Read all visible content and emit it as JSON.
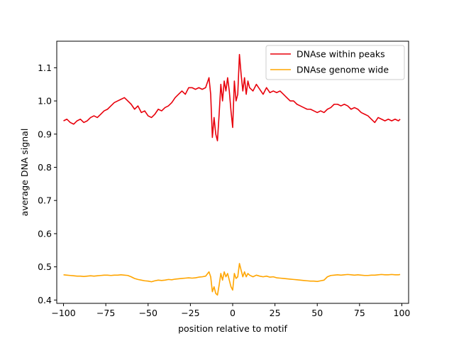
{
  "chart_data": {
    "type": "line",
    "title": "",
    "xlabel": "position relative to motif",
    "ylabel": "average DNA signal",
    "xlim": [
      -104,
      104
    ],
    "ylim": [
      0.39,
      1.18
    ],
    "xticks": [
      -100,
      -75,
      -50,
      -25,
      0,
      25,
      50,
      75,
      100
    ],
    "xtick_labels": [
      "−100",
      "−75",
      "−50",
      "−25",
      "0",
      "25",
      "50",
      "75",
      "100"
    ],
    "yticks": [
      0.4,
      0.5,
      0.6,
      0.7,
      0.8,
      0.9,
      1.0,
      1.1
    ],
    "ytick_labels": [
      "0.4",
      "0.5",
      "0.6",
      "0.7",
      "0.8",
      "0.9",
      "1.0",
      "1.1"
    ],
    "grid": false,
    "legend_position": "upper right",
    "x": [
      -100,
      -98,
      -96,
      -94,
      -92,
      -90,
      -88,
      -86,
      -84,
      -82,
      -80,
      -78,
      -76,
      -74,
      -72,
      -70,
      -68,
      -66,
      -64,
      -62,
      -60,
      -58,
      -56,
      -54,
      -52,
      -50,
      -48,
      -46,
      -44,
      -42,
      -40,
      -38,
      -36,
      -34,
      -32,
      -30,
      -28,
      -26,
      -24,
      -22,
      -20,
      -18,
      -16,
      -14,
      -13,
      -12,
      -11,
      -10,
      -9,
      -8,
      -7,
      -6,
      -5,
      -4,
      -3,
      -2,
      -1,
      0,
      1,
      2,
      3,
      4,
      5,
      6,
      7,
      8,
      9,
      10,
      12,
      14,
      16,
      18,
      20,
      22,
      24,
      26,
      28,
      30,
      32,
      34,
      36,
      38,
      40,
      42,
      44,
      46,
      48,
      50,
      52,
      54,
      56,
      58,
      60,
      62,
      64,
      66,
      68,
      70,
      72,
      74,
      76,
      78,
      80,
      82,
      84,
      86,
      88,
      90,
      92,
      94,
      96,
      98,
      99
    ],
    "series": [
      {
        "name": "DNAse within peaks",
        "color": "#e8000b",
        "values": [
          0.94,
          0.945,
          0.935,
          0.93,
          0.94,
          0.945,
          0.935,
          0.94,
          0.95,
          0.955,
          0.95,
          0.96,
          0.97,
          0.975,
          0.985,
          0.995,
          1.0,
          1.005,
          1.01,
          1.0,
          0.99,
          0.975,
          0.985,
          0.965,
          0.97,
          0.955,
          0.95,
          0.96,
          0.975,
          0.97,
          0.98,
          0.985,
          0.995,
          1.01,
          1.02,
          1.03,
          1.02,
          1.04,
          1.04,
          1.035,
          1.04,
          1.035,
          1.04,
          1.07,
          1.02,
          0.89,
          0.95,
          0.9,
          0.88,
          0.96,
          1.05,
          1.0,
          1.06,
          1.03,
          1.07,
          1.03,
          0.97,
          0.92,
          1.06,
          1.0,
          1.02,
          1.14,
          1.08,
          1.03,
          1.07,
          1.02,
          1.06,
          1.04,
          1.03,
          1.05,
          1.035,
          1.02,
          1.04,
          1.025,
          1.03,
          1.025,
          1.03,
          1.02,
          1.01,
          1.0,
          1.0,
          0.99,
          0.985,
          0.98,
          0.975,
          0.975,
          0.97,
          0.965,
          0.97,
          0.965,
          0.975,
          0.98,
          0.99,
          0.99,
          0.985,
          0.99,
          0.985,
          0.975,
          0.98,
          0.975,
          0.965,
          0.96,
          0.955,
          0.945,
          0.935,
          0.95,
          0.945,
          0.94,
          0.945,
          0.94,
          0.945,
          0.94,
          0.945
        ]
      },
      {
        "name": "DNAse genome wide",
        "color": "#ffa500",
        "values": [
          0.476,
          0.475,
          0.474,
          0.473,
          0.472,
          0.472,
          0.471,
          0.472,
          0.473,
          0.472,
          0.473,
          0.474,
          0.475,
          0.475,
          0.474,
          0.475,
          0.475,
          0.476,
          0.475,
          0.474,
          0.47,
          0.465,
          0.462,
          0.46,
          0.458,
          0.457,
          0.455,
          0.458,
          0.46,
          0.459,
          0.46,
          0.462,
          0.461,
          0.463,
          0.464,
          0.465,
          0.466,
          0.467,
          0.466,
          0.467,
          0.469,
          0.47,
          0.472,
          0.485,
          0.47,
          0.425,
          0.44,
          0.42,
          0.415,
          0.445,
          0.48,
          0.46,
          0.485,
          0.47,
          0.48,
          0.46,
          0.44,
          0.43,
          0.48,
          0.465,
          0.47,
          0.51,
          0.49,
          0.47,
          0.485,
          0.47,
          0.48,
          0.475,
          0.47,
          0.475,
          0.472,
          0.47,
          0.472,
          0.469,
          0.47,
          0.467,
          0.466,
          0.465,
          0.464,
          0.463,
          0.462,
          0.461,
          0.46,
          0.459,
          0.458,
          0.457,
          0.457,
          0.456,
          0.458,
          0.46,
          0.47,
          0.474,
          0.475,
          0.476,
          0.475,
          0.476,
          0.477,
          0.476,
          0.475,
          0.476,
          0.475,
          0.474,
          0.474,
          0.475,
          0.475,
          0.476,
          0.477,
          0.476,
          0.476,
          0.477,
          0.476,
          0.476,
          0.477
        ]
      }
    ]
  }
}
